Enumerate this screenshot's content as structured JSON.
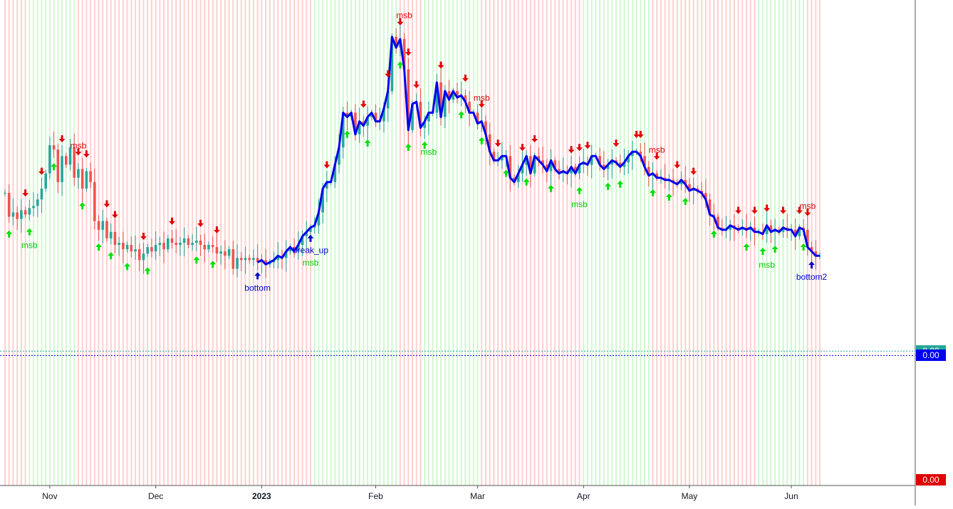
{
  "chart_data": {
    "type": "line",
    "x_axis": {
      "ticks": [
        "Nov",
        "Dec",
        "2023",
        "Feb",
        "Mar",
        "Apr",
        "May",
        "Jun"
      ],
      "tick_index": [
        11,
        37,
        63,
        91,
        116,
        142,
        168,
        193
      ],
      "bold_ticks": [
        "2023"
      ]
    },
    "price_badges": [
      {
        "value": "0.00",
        "color": "#26a69a",
        "level": 0.0
      },
      {
        "value": "0.00",
        "color": "#0000ee",
        "level": -0.02
      },
      {
        "value": "0.00",
        "color": "#e00000",
        "level": -0.58
      }
    ],
    "colors": {
      "up": "#26a69a",
      "down": "#ef5350",
      "line": "#0000ee",
      "bull_bg": "#c8f7c8",
      "bear_bg": "#ffc8c8",
      "arrow_up": "#00e000",
      "arrow_down": "#e00000",
      "pivot": "#0000cc"
    },
    "background_regimes": [
      {
        "from": 0,
        "to": 5,
        "state": "bear"
      },
      {
        "from": 6,
        "to": 17,
        "state": "bull"
      },
      {
        "from": 18,
        "to": 75,
        "state": "bear"
      },
      {
        "from": 76,
        "to": 96,
        "state": "bull"
      },
      {
        "from": 97,
        "to": 102,
        "state": "bear"
      },
      {
        "from": 103,
        "to": 116,
        "state": "bull"
      },
      {
        "from": 117,
        "to": 141,
        "state": "bear"
      },
      {
        "from": 142,
        "to": 158,
        "state": "bull"
      },
      {
        "from": 159,
        "to": 184,
        "state": "bear"
      },
      {
        "from": 185,
        "to": 196,
        "state": "bull"
      },
      {
        "from": 197,
        "to": 200,
        "state": "bear"
      }
    ],
    "close": [
      0.73,
      0.62,
      0.64,
      0.61,
      0.65,
      0.63,
      0.66,
      0.67,
      0.7,
      0.75,
      0.82,
      0.95,
      0.93,
      0.78,
      0.9,
      0.86,
      0.94,
      0.8,
      0.84,
      0.75,
      0.83,
      0.78,
      0.6,
      0.56,
      0.6,
      0.52,
      0.55,
      0.49,
      0.5,
      0.47,
      0.49,
      0.46,
      0.47,
      0.42,
      0.45,
      0.48,
      0.46,
      0.49,
      0.5,
      0.47,
      0.52,
      0.5,
      0.49,
      0.5,
      0.52,
      0.49,
      0.5,
      0.51,
      0.49,
      0.47,
      0.49,
      0.48,
      0.45,
      0.46,
      0.44,
      0.47,
      0.38,
      0.43,
      0.42,
      0.43,
      0.42,
      0.43,
      0.41,
      0.42,
      0.4,
      0.41,
      0.42,
      0.44,
      0.43,
      0.46,
      0.48,
      0.46,
      0.49,
      0.53,
      0.55,
      0.57,
      0.58,
      0.64,
      0.75,
      0.78,
      0.78,
      0.86,
      0.94,
      1.1,
      1.08,
      1.1,
      1.0,
      1.06,
      1.04,
      1.08,
      1.1,
      1.06,
      1.06,
      1.12,
      1.2,
      1.45,
      1.4,
      1.44,
      1.3,
      1.02,
      1.14,
      1.15,
      1.03,
      1.06,
      1.1,
      1.1,
      1.24,
      1.08,
      1.2,
      1.16,
      1.2,
      1.17,
      1.18,
      1.15,
      1.1,
      1.1,
      1.05,
      1.06,
      1.0,
      0.92,
      0.88,
      0.88,
      0.9,
      0.9,
      0.8,
      0.78,
      0.82,
      0.86,
      0.9,
      0.82,
      0.9,
      0.88,
      0.86,
      0.83,
      0.88,
      0.84,
      0.82,
      0.83,
      0.82,
      0.85,
      0.82,
      0.86,
      0.87,
      0.86,
      0.9,
      0.9,
      0.86,
      0.84,
      0.86,
      0.88,
      0.87,
      0.85,
      0.87,
      0.9,
      0.92,
      0.92,
      0.9,
      0.85,
      0.81,
      0.82,
      0.8,
      0.8,
      0.79,
      0.79,
      0.78,
      0.77,
      0.79,
      0.77,
      0.74,
      0.75,
      0.74,
      0.73,
      0.7,
      0.63,
      0.62,
      0.57,
      0.56,
      0.56,
      0.58,
      0.57,
      0.56,
      0.57,
      0.56,
      0.57,
      0.55,
      0.55,
      0.54,
      0.58,
      0.55,
      0.56,
      0.55,
      0.57,
      0.56,
      0.56,
      0.53,
      0.57,
      0.56,
      0.48,
      0.46,
      0.44,
      0.44
    ],
    "ylim": [
      -0.62,
      1.62
    ],
    "signal_line": {
      "from": 62,
      "to": 200
    },
    "signals": [
      {
        "type": "up",
        "i": 1
      },
      {
        "type": "down",
        "i": 5
      },
      {
        "type": "up",
        "i": 6
      },
      {
        "type": "msb_bull",
        "i": 6
      },
      {
        "type": "down",
        "i": 9
      },
      {
        "type": "up",
        "i": 12
      },
      {
        "type": "down",
        "i": 14
      },
      {
        "type": "msb_bear",
        "i": 18
      },
      {
        "type": "down",
        "i": 18
      },
      {
        "type": "up",
        "i": 19
      },
      {
        "type": "down",
        "i": 20
      },
      {
        "type": "up",
        "i": 23
      },
      {
        "type": "down",
        "i": 25
      },
      {
        "type": "up",
        "i": 26
      },
      {
        "type": "down",
        "i": 27
      },
      {
        "type": "up",
        "i": 30
      },
      {
        "type": "down",
        "i": 34
      },
      {
        "type": "up",
        "i": 35
      },
      {
        "type": "down",
        "i": 41
      },
      {
        "type": "up",
        "i": 47
      },
      {
        "type": "down",
        "i": 48
      },
      {
        "type": "up",
        "i": 51
      },
      {
        "type": "down",
        "i": 52
      },
      {
        "type": "bottom",
        "i": 62
      },
      {
        "type": "msb_bull",
        "i": 75
      },
      {
        "type": "break_up",
        "i": 75
      },
      {
        "type": "down",
        "i": 79
      },
      {
        "type": "up",
        "i": 84
      },
      {
        "type": "down",
        "i": 88
      },
      {
        "type": "up",
        "i": 89
      },
      {
        "type": "down",
        "i": 94
      },
      {
        "type": "msb_bear",
        "i": 98
      },
      {
        "type": "down",
        "i": 97
      },
      {
        "type": "up",
        "i": 97
      },
      {
        "type": "down",
        "i": 99
      },
      {
        "type": "up",
        "i": 99
      },
      {
        "type": "down",
        "i": 101
      },
      {
        "type": "up",
        "i": 103
      },
      {
        "type": "msb_bull",
        "i": 104
      },
      {
        "type": "down",
        "i": 107
      },
      {
        "type": "up",
        "i": 112
      },
      {
        "type": "down",
        "i": 113
      },
      {
        "type": "msb_bear",
        "i": 117
      },
      {
        "type": "down",
        "i": 117
      },
      {
        "type": "up",
        "i": 117
      },
      {
        "type": "down",
        "i": 121
      },
      {
        "type": "up",
        "i": 123
      },
      {
        "type": "down",
        "i": 127
      },
      {
        "type": "up",
        "i": 128
      },
      {
        "type": "down",
        "i": 130
      },
      {
        "type": "up",
        "i": 134
      },
      {
        "type": "down",
        "i": 139
      },
      {
        "type": "msb_bull",
        "i": 141
      },
      {
        "type": "down",
        "i": 141
      },
      {
        "type": "up",
        "i": 141
      },
      {
        "type": "down",
        "i": 143
      },
      {
        "type": "up",
        "i": 148
      },
      {
        "type": "down",
        "i": 150
      },
      {
        "type": "up",
        "i": 151
      },
      {
        "type": "down",
        "i": 155
      },
      {
        "type": "down",
        "i": 156
      },
      {
        "type": "msb_bear",
        "i": 160
      },
      {
        "type": "down",
        "i": 160
      },
      {
        "type": "up",
        "i": 159
      },
      {
        "type": "up",
        "i": 163
      },
      {
        "type": "down",
        "i": 165
      },
      {
        "type": "up",
        "i": 167
      },
      {
        "type": "down",
        "i": 169
      },
      {
        "type": "up",
        "i": 174
      },
      {
        "type": "down",
        "i": 180
      },
      {
        "type": "up",
        "i": 182
      },
      {
        "type": "down",
        "i": 184
      },
      {
        "type": "up",
        "i": 186
      },
      {
        "type": "msb_bull",
        "i": 187
      },
      {
        "type": "down",
        "i": 187
      },
      {
        "type": "up",
        "i": 189
      },
      {
        "type": "down",
        "i": 191
      },
      {
        "type": "up",
        "i": 196
      },
      {
        "type": "down",
        "i": 195
      },
      {
        "type": "msb_bear",
        "i": 197
      },
      {
        "type": "down",
        "i": 197
      },
      {
        "type": "bottom2",
        "i": 198
      }
    ],
    "labels": {
      "msb": "msb",
      "bottom": "bottom",
      "break_up": "break_up",
      "bottom2": "bottom2"
    }
  }
}
